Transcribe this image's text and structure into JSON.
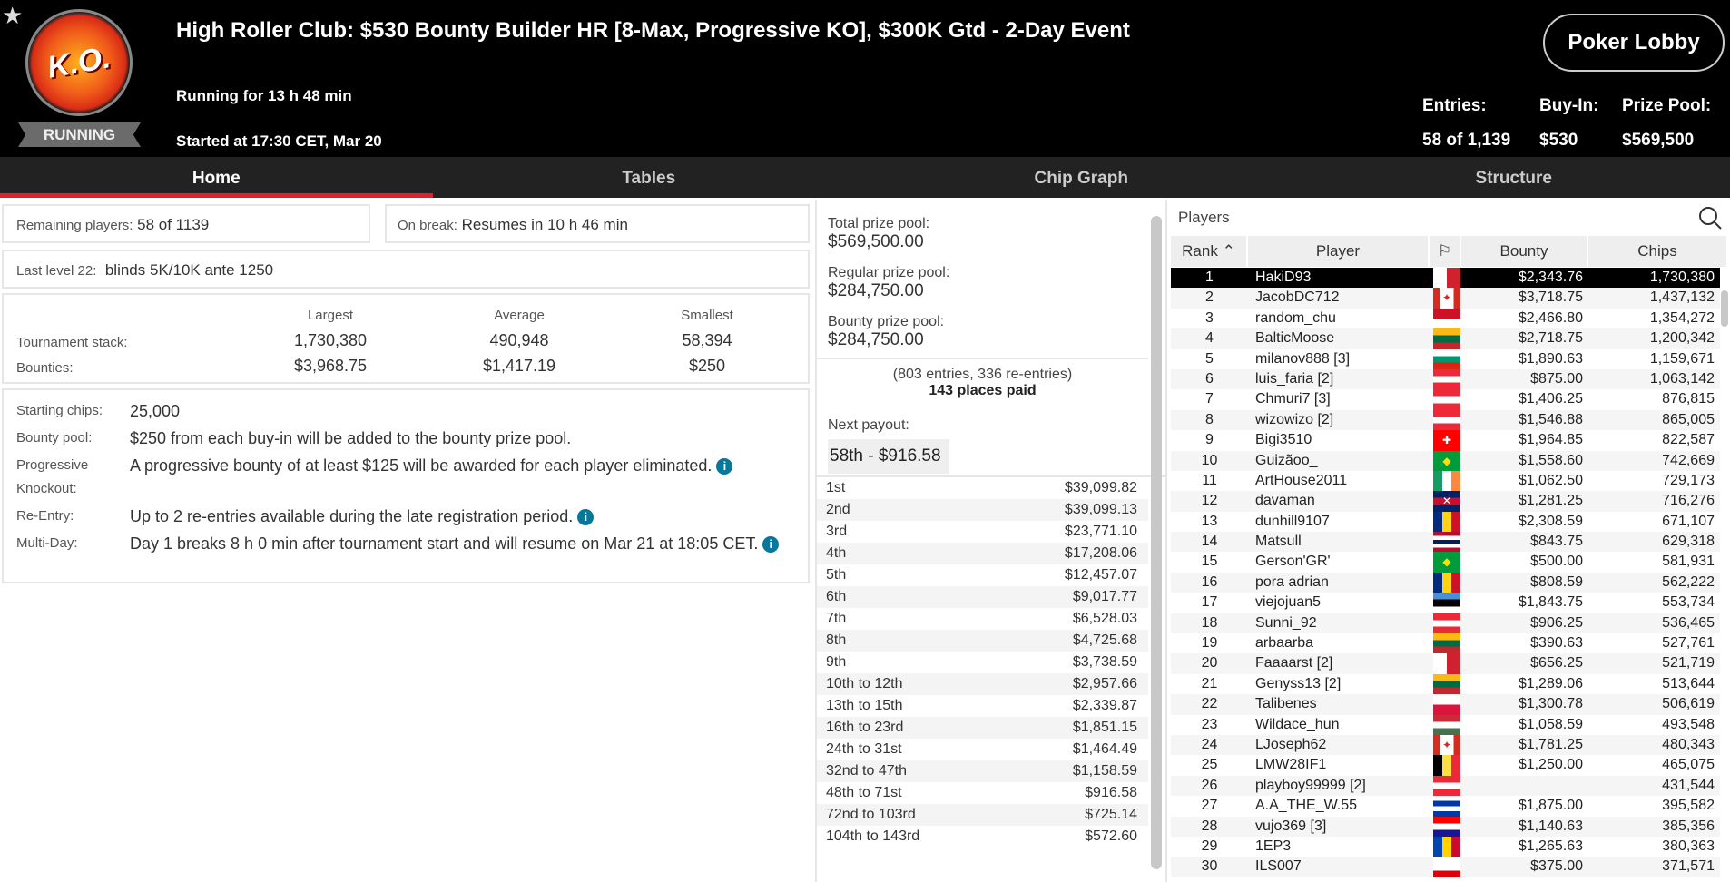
{
  "header": {
    "title": "High Roller Club: $530 Bounty Builder HR [8-Max, Progressive KO], $300K Gtd - 2-Day Event",
    "running_for": "Running for 13 h 48 min",
    "started": "Started at 17:30 CET, Mar 20",
    "status": "RUNNING",
    "logo_text": "K.O.",
    "lobby_button": "Poker Lobby",
    "entries_label": "Entries:",
    "entries": "58 of 1,139",
    "buyin_label": "Buy-In:",
    "buyin": "$530",
    "prize_label": "Prize Pool:",
    "prize": "$569,500"
  },
  "tabs": [
    {
      "label": "Home",
      "active": true
    },
    {
      "label": "Tables"
    },
    {
      "label": "Chip Graph"
    },
    {
      "label": "Structure"
    }
  ],
  "home": {
    "remaining_label": "Remaining players:",
    "remaining": "58 of 1139",
    "break_label": "On break:",
    "break": "Resumes in 10 h 46 min",
    "level_label": "Last level 22:",
    "level": "blinds 5K/10K ante 1250",
    "stats": {
      "cols": [
        "Largest",
        "Average",
        "Smallest"
      ],
      "rows": [
        {
          "label": "Tournament stack:",
          "vals": [
            "1,730,380",
            "490,948",
            "58,394"
          ]
        },
        {
          "label": "Bounties:",
          "vals": [
            "$3,968.75",
            "$1,417.19",
            "$250"
          ]
        }
      ]
    },
    "info": [
      {
        "k": "Starting chips:",
        "v": "25,000",
        "i": false
      },
      {
        "k": "Bounty pool:",
        "v": "$250 from each buy-in will be added to the bounty prize pool.",
        "i": false
      },
      {
        "k": "Progressive Knockout:",
        "v": "A progressive bounty of at least $125 will be awarded for each player eliminated.",
        "i": true
      },
      {
        "k": "Re-Entry:",
        "v": "Up to 2 re-entries available during the late registration period.",
        "i": true
      },
      {
        "k": "Multi-Day:",
        "v": "Day 1 breaks 8 h 0 min after tournament start and will resume on Mar 21 at 18:05 CET.",
        "i": true
      }
    ]
  },
  "prize": {
    "total_label": "Total prize pool:",
    "total": "$569,500.00",
    "regular_label": "Regular prize pool:",
    "regular": "$284,750.00",
    "bounty_label": "Bounty prize pool:",
    "bounty": "$284,750.00",
    "entries_note": "(803 entries, 336 re-entries)",
    "places_paid": "143 places paid",
    "next_label": "Next payout:",
    "next": "58th - $916.58",
    "payouts": [
      [
        "1st",
        "$39,099.82"
      ],
      [
        "2nd",
        "$39,099.13"
      ],
      [
        "3rd",
        "$23,771.10"
      ],
      [
        "4th",
        "$17,208.06"
      ],
      [
        "5th",
        "$12,457.07"
      ],
      [
        "6th",
        "$9,017.77"
      ],
      [
        "7th",
        "$6,528.03"
      ],
      [
        "8th",
        "$4,725.68"
      ],
      [
        "9th",
        "$3,738.59"
      ],
      [
        "10th to 12th",
        "$2,957.66"
      ],
      [
        "13th to 15th",
        "$2,339.87"
      ],
      [
        "16th to 23rd",
        "$1,851.15"
      ],
      [
        "24th to 31st",
        "$1,464.49"
      ],
      [
        "32nd to 47th",
        "$1,158.59"
      ],
      [
        "48th to 71st",
        "$916.58"
      ],
      [
        "72nd to 103rd",
        "$725.14"
      ],
      [
        "104th to 143rd",
        "$572.60"
      ]
    ]
  },
  "players": {
    "title": "Players",
    "columns": [
      "Rank",
      "Player",
      "",
      "Bounty",
      "Chips"
    ],
    "sort_icon": "chevron-up",
    "flags": {
      "MT": {
        "dir": "v",
        "c": [
          "#fff",
          "#d0222e"
        ]
      },
      "CA": {
        "dir": "v",
        "c": [
          "#d52b1e",
          "#fff",
          "#fff",
          "#d52b1e"
        ],
        "g": "✦",
        "gc": "#d52b1e"
      },
      "MC": {
        "dir": "h",
        "c": [
          "#ce1126",
          "#fff"
        ]
      },
      "LT": {
        "dir": "h",
        "c": [
          "#fdb913",
          "#006a44",
          "#c1272d"
        ]
      },
      "BG": {
        "dir": "h",
        "c": [
          "#fff",
          "#00966e",
          "#d62612"
        ]
      },
      "AT": {
        "dir": "h",
        "c": [
          "#ed2939",
          "#fff",
          "#ed2939"
        ]
      },
      "CH": {
        "dir": "h",
        "c": [
          "#ff0000"
        ],
        "g": "✚",
        "gc": "#fff"
      },
      "BR": {
        "dir": "h",
        "c": [
          "#009c3b"
        ],
        "g": "◆",
        "gc": "#ffdf00"
      },
      "IE": {
        "dir": "v",
        "c": [
          "#169b62",
          "#fff",
          "#ff883e"
        ]
      },
      "GB": {
        "dir": "h",
        "c": [
          "#012169",
          "#c8102e",
          "#012169"
        ],
        "g": "✕",
        "gc": "#fff"
      },
      "RO": {
        "dir": "v",
        "c": [
          "#002b7f",
          "#fcd116",
          "#ce1126"
        ]
      },
      "NO": {
        "dir": "h",
        "c": [
          "#ba0c2f",
          "#fff",
          "#00205b",
          "#fff",
          "#ba0c2f"
        ]
      },
      "EE": {
        "dir": "h",
        "c": [
          "#4891d9",
          "#000",
          "#fff"
        ]
      },
      "PL": {
        "dir": "h",
        "c": [
          "#fff",
          "#dc143c"
        ]
      },
      "HU": {
        "dir": "h",
        "c": [
          "#ce2939",
          "#fff",
          "#477050"
        ]
      },
      "BE": {
        "dir": "v",
        "c": [
          "#000",
          "#fae042",
          "#ed2939"
        ]
      },
      "UY": {
        "dir": "h",
        "c": [
          "#fff",
          "#0038a8",
          "#fff",
          "#0038a8"
        ]
      },
      "HR": {
        "dir": "h",
        "c": [
          "#ff0000",
          "#fff",
          "#171796"
        ]
      },
      "MD": {
        "dir": "v",
        "c": [
          "#0046ae",
          "#ffd200",
          "#cc092f"
        ]
      },
      "GI": {
        "dir": "h",
        "c": [
          "#fff",
          "#fff",
          "#da000c"
        ]
      }
    },
    "rows": [
      [
        "1",
        "HakiD93",
        "MT",
        "$2,343.76",
        "1,730,380"
      ],
      [
        "2",
        "JacobDC712",
        "CA",
        "$3,718.75",
        "1,437,132"
      ],
      [
        "3",
        "random_chu",
        "MC",
        "$2,466.80",
        "1,354,272"
      ],
      [
        "4",
        "BalticMoose",
        "LT",
        "$2,718.75",
        "1,200,342"
      ],
      [
        "5",
        "milanov888 [3]",
        "BG",
        "$1,890.63",
        "1,159,671"
      ],
      [
        "6",
        "luis_faria [2]",
        "AT",
        "$875.00",
        "1,063,142"
      ],
      [
        "7",
        "Chmuri7 [3]",
        "AT",
        "$1,406.25",
        "876,815"
      ],
      [
        "8",
        "wizowizo [2]",
        "AT",
        "$1,546.88",
        "865,005"
      ],
      [
        "9",
        "Bigi3510",
        "CH",
        "$1,964.85",
        "822,587"
      ],
      [
        "10",
        "Guizãoo_",
        "BR",
        "$1,558.60",
        "742,669"
      ],
      [
        "11",
        "ArtHouse2011",
        "IE",
        "$1,062.50",
        "729,173"
      ],
      [
        "12",
        "davaman",
        "GB",
        "$1,281.25",
        "716,276"
      ],
      [
        "13",
        "dunhill9107",
        "RO",
        "$2,308.59",
        "671,107"
      ],
      [
        "14",
        "Matsull",
        "NO",
        "$843.75",
        "629,318"
      ],
      [
        "15",
        "Gerson'GR'",
        "BR",
        "$500.00",
        "581,931"
      ],
      [
        "16",
        "pora adrian",
        "RO",
        "$808.59",
        "562,222"
      ],
      [
        "17",
        "viejojuan5",
        "EE",
        "$1,843.75",
        "553,734"
      ],
      [
        "18",
        "Sunni_92",
        "AT",
        "$906.25",
        "536,465"
      ],
      [
        "19",
        "arbaarba",
        "LT",
        "$390.63",
        "527,761"
      ],
      [
        "20",
        "Faaaarst [2]",
        "MT",
        "$656.25",
        "521,719"
      ],
      [
        "21",
        "Genyss13 [2]",
        "LT",
        "$1,289.06",
        "513,644"
      ],
      [
        "22",
        "Talibenes",
        "PL",
        "$1,300.78",
        "506,619"
      ],
      [
        "23",
        "Wildace_hun",
        "HU",
        "$1,058.59",
        "493,548"
      ],
      [
        "24",
        "LJoseph62",
        "CA",
        "$1,781.25",
        "480,343"
      ],
      [
        "25",
        "LMW28IF1",
        "BE",
        "$1,250.00",
        "465,075"
      ],
      [
        "26",
        "playboy99999 [2]",
        "AT",
        "",
        "431,544"
      ],
      [
        "27",
        "A.A_THE_W.55",
        "UY",
        "$1,875.00",
        "395,582"
      ],
      [
        "28",
        "vujo369 [3]",
        "HR",
        "$1,140.63",
        "385,356"
      ],
      [
        "29",
        "1EP3",
        "MD",
        "$1,265.63",
        "380,363"
      ],
      [
        "30",
        "ILS007",
        "GI",
        "$375.00",
        "371,571"
      ]
    ]
  }
}
